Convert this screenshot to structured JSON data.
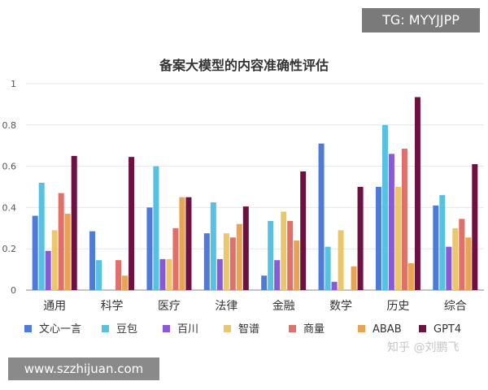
{
  "chart_data": {
    "type": "bar",
    "title": "备案大模型的内容准确性评估",
    "categories": [
      "通用",
      "科学",
      "医疗",
      "法律",
      "金融",
      "数学",
      "历史",
      "综合"
    ],
    "ylim": [
      0,
      1
    ],
    "yticks": [
      "0",
      "0.2",
      "0.4",
      "0.6",
      "0.8",
      "1"
    ],
    "grid": true,
    "legend_position": "bottom",
    "series": [
      {
        "name": "文心一言",
        "color": "#4e7bd6",
        "values": [
          0.36,
          0.285,
          0.4,
          0.275,
          0.07,
          0.71,
          0.5,
          0.41
        ]
      },
      {
        "name": "豆包",
        "color": "#56c1e0",
        "values": [
          0.52,
          0.145,
          0.6,
          0.425,
          0.335,
          0.21,
          0.8,
          0.46
        ]
      },
      {
        "name": "百川",
        "color": "#8a5ad6",
        "values": [
          0.19,
          0,
          0.15,
          0.15,
          0.145,
          0.04,
          0.66,
          0.21
        ]
      },
      {
        "name": "智谱",
        "color": "#eac76a",
        "values": [
          0.29,
          0,
          0.15,
          0.275,
          0.38,
          0.29,
          0.5,
          0.3
        ]
      },
      {
        "name": "商量",
        "color": "#e0706a",
        "values": [
          0.47,
          0.145,
          0.3,
          0.255,
          0.335,
          0,
          0.685,
          0.345
        ]
      },
      {
        "name": "ABAB",
        "color": "#e8a455",
        "values": [
          0.37,
          0.07,
          0.45,
          0.32,
          0.24,
          0.115,
          0.13,
          0.255
        ]
      },
      {
        "name": "GPT4",
        "color": "#6e1040",
        "values": [
          0.65,
          0.645,
          0.45,
          0.405,
          0.575,
          0.5,
          0.935,
          0.61
        ]
      }
    ]
  },
  "watermarks": {
    "tg": "TG: MYYJJPP",
    "site": "www.szzhijuan.com",
    "zhihu": "知乎 @刘鹏飞"
  }
}
